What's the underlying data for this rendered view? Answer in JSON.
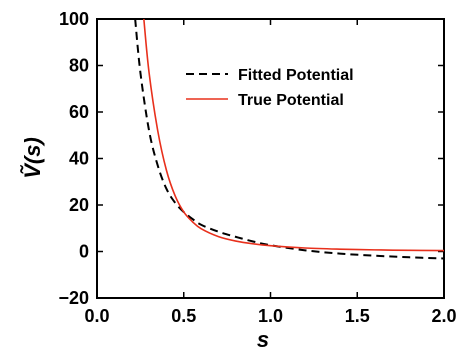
{
  "chart_data": {
    "type": "line",
    "title": "",
    "xlabel": "s",
    "ylabel": "Ṽ(s)",
    "xlim": [
      0.0,
      2.0
    ],
    "ylim": [
      -20,
      100
    ],
    "xticks": [
      0.0,
      0.5,
      1.0,
      1.5,
      2.0
    ],
    "xtick_labels": [
      "0.0",
      "0.5",
      "1.0",
      "1.5",
      "2.0"
    ],
    "yticks": [
      -20,
      0,
      20,
      40,
      60,
      80,
      100
    ],
    "ytick_labels": [
      "−20",
      "0",
      "20",
      "40",
      "60",
      "80",
      "100"
    ],
    "grid": false,
    "legend_position": "top-right",
    "series": [
      {
        "name": "Fitted Potential",
        "color": "#000000",
        "style": "dashed",
        "x": [
          0.22,
          0.25,
          0.3,
          0.35,
          0.4,
          0.45,
          0.5,
          0.55,
          0.6,
          0.7,
          0.8,
          0.9,
          1.0,
          1.2,
          1.4,
          1.6,
          1.8,
          2.0
        ],
        "y": [
          100,
          77,
          52,
          37,
          27,
          21,
          17,
          14,
          11.5,
          8.5,
          6.3,
          4.3,
          2.7,
          0.5,
          -0.9,
          -1.8,
          -2.5,
          -3.0
        ]
      },
      {
        "name": "True Potential",
        "color": "#e8301c",
        "style": "solid",
        "x": [
          0.27,
          0.3,
          0.35,
          0.4,
          0.45,
          0.5,
          0.55,
          0.6,
          0.7,
          0.8,
          0.9,
          1.0,
          1.2,
          1.4,
          1.6,
          1.8,
          2.0
        ],
        "y": [
          100,
          77,
          52,
          35,
          24,
          17,
          12.8,
          9.8,
          6.4,
          4.5,
          3.3,
          2.5,
          1.5,
          1.0,
          0.7,
          0.5,
          0.4
        ]
      }
    ]
  }
}
